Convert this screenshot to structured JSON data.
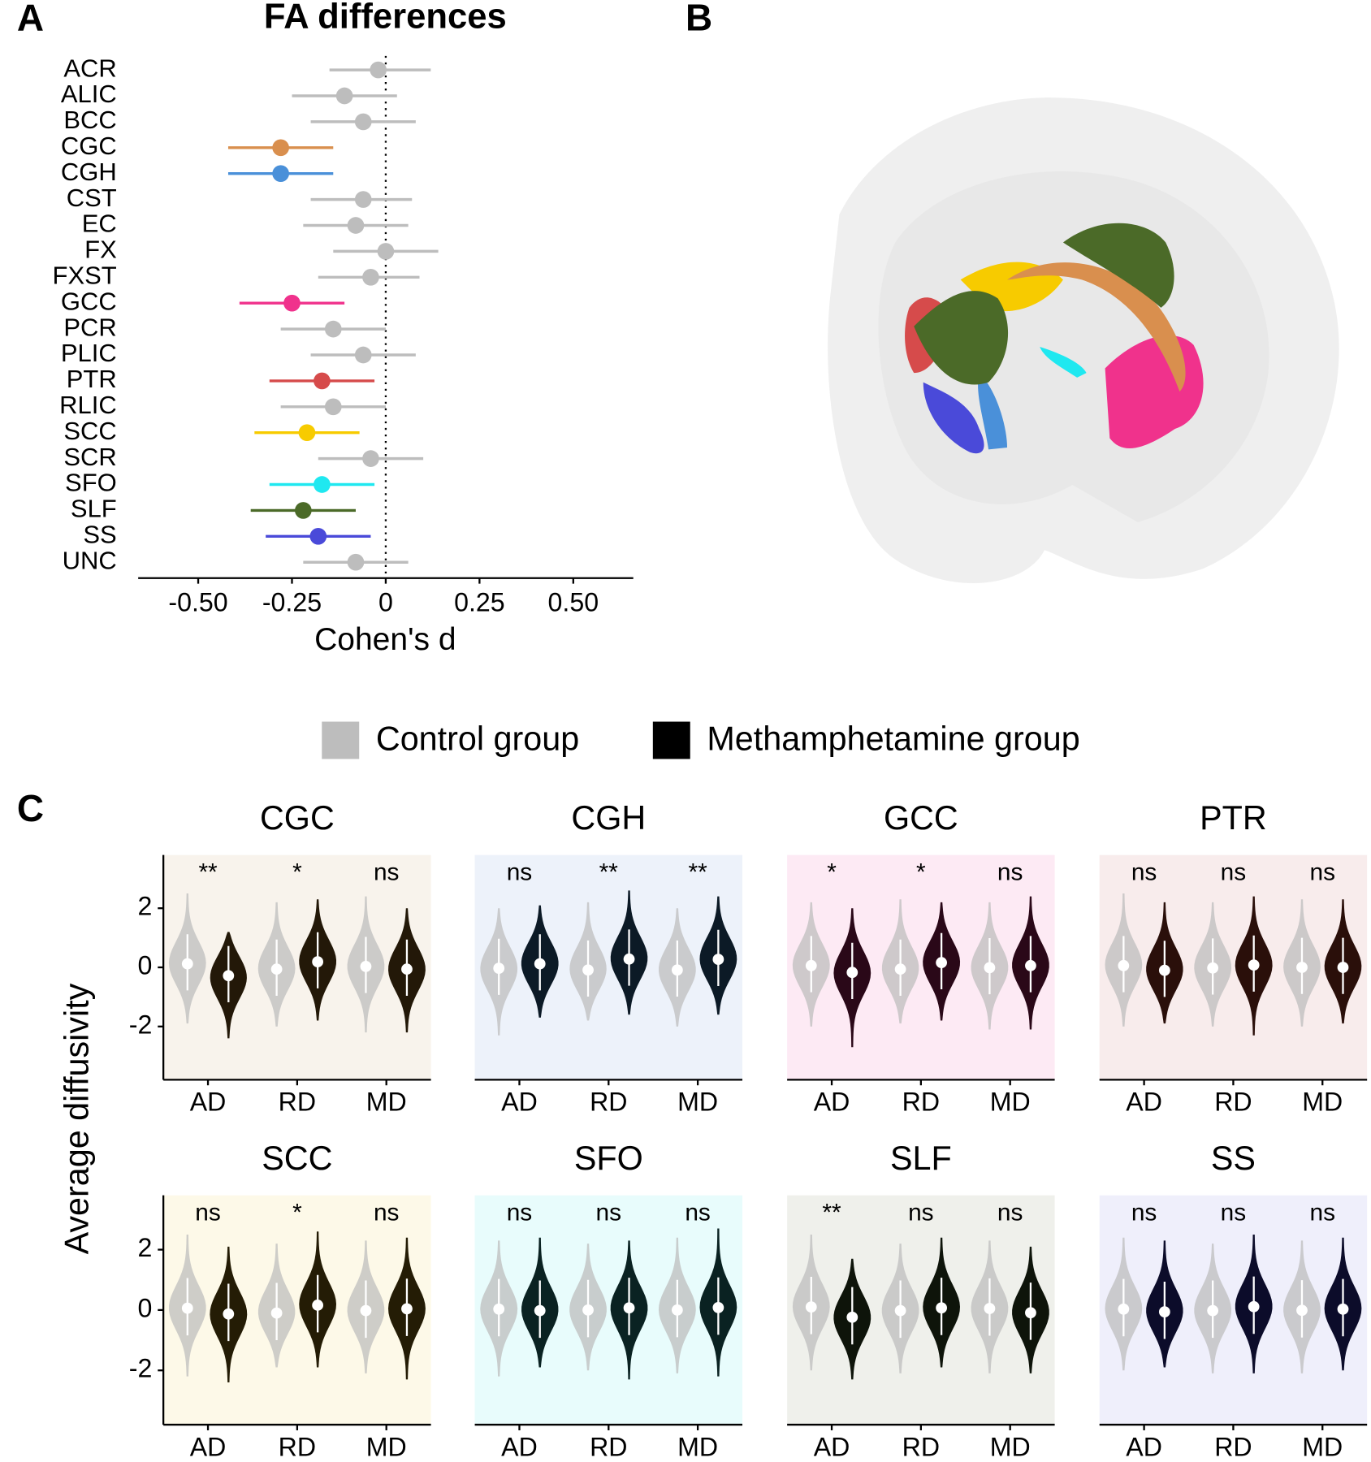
{
  "panel_labels": [
    "A",
    "B",
    "C"
  ],
  "chart_data": [
    {
      "type": "forest",
      "title": "FA differences",
      "x_label": "Cohen's d",
      "categories": [
        "ACR",
        "ALIC",
        "BCC",
        "CGC",
        "CGH",
        "CST",
        "EC",
        "FX",
        "FXST",
        "GCC",
        "PCR",
        "PLIC",
        "PTR",
        "RLIC",
        "SCC",
        "SCR",
        "SFO",
        "SLF",
        "SS",
        "UNC"
      ],
      "values": [
        -0.02,
        -0.11,
        -0.06,
        -0.28,
        -0.28,
        -0.06,
        -0.08,
        0.0,
        -0.04,
        -0.25,
        -0.14,
        -0.06,
        -0.17,
        -0.14,
        -0.21,
        -0.04,
        -0.17,
        -0.22,
        -0.18,
        -0.08
      ],
      "lower": [
        -0.15,
        -0.25,
        -0.2,
        -0.42,
        -0.42,
        -0.2,
        -0.22,
        -0.14,
        -0.18,
        -0.39,
        -0.28,
        -0.2,
        -0.31,
        -0.28,
        -0.35,
        -0.18,
        -0.31,
        -0.36,
        -0.32,
        -0.22
      ],
      "upper": [
        0.12,
        0.03,
        0.08,
        -0.14,
        -0.14,
        0.07,
        0.06,
        0.14,
        0.09,
        -0.11,
        0.0,
        0.08,
        -0.03,
        0.0,
        -0.07,
        0.1,
        -0.03,
        -0.08,
        -0.04,
        0.06
      ],
      "colors": [
        "#bdbdbd",
        "#bdbdbd",
        "#bdbdbd",
        "#d98f4e",
        "#4a90d9",
        "#bdbdbd",
        "#bdbdbd",
        "#bdbdbd",
        "#bdbdbd",
        "#f0328c",
        "#bdbdbd",
        "#bdbdbd",
        "#d64b4b",
        "#bdbdbd",
        "#f7cb00",
        "#bdbdbd",
        "#1fe8f0",
        "#4b6a28",
        "#4a4ad9",
        "#bdbdbd"
      ],
      "xlim": [
        -0.66,
        0.66
      ],
      "xticks": [
        {
          "value": -0.5,
          "label": "-0.50"
        },
        {
          "value": -0.25,
          "label": "-0.25"
        },
        0,
        {
          "value": 0.25,
          "label": "0.25"
        },
        {
          "value": 0.5,
          "label": "0.50"
        }
      ],
      "reference_line": 0
    },
    {
      "type": "violin",
      "y_label": "Average diffusivity",
      "categories": [
        "AD",
        "RD",
        "MD"
      ],
      "ylim": [
        -3.8,
        3.8
      ],
      "yticks": [
        -2,
        0,
        2
      ],
      "series": [
        {
          "name": "Control group",
          "color": "#bdbdbd"
        },
        {
          "name": "Methamphetamine group",
          "color": "#000000"
        }
      ],
      "facets": [
        {
          "title": "CGC",
          "background": "#f8f3ec",
          "color": "#231808",
          "significance": [
            "**",
            "*",
            "ns"
          ],
          "series": [
            {
              "values": [
                0.12,
                -0.06,
                0.03
              ],
              "min": [
                -1.9,
                -2.0,
                -2.2
              ],
              "max": [
                2.5,
                2.2,
                2.4
              ]
            },
            {
              "values": [
                -0.28,
                0.19,
                -0.06
              ],
              "min": [
                -2.4,
                -1.8,
                -2.2
              ],
              "max": [
                1.2,
                2.3,
                2.0
              ]
            }
          ]
        },
        {
          "title": "CGH",
          "background": "#edf2fa",
          "color": "#0c1a26",
          "significance": [
            "ns",
            "**",
            "**"
          ],
          "series": [
            {
              "values": [
                -0.03,
                -0.09,
                -0.09
              ],
              "min": [
                -2.3,
                -1.8,
                -2.0
              ],
              "max": [
                2.0,
                2.2,
                2.0
              ]
            },
            {
              "values": [
                0.12,
                0.28,
                0.27
              ],
              "min": [
                -1.7,
                -1.6,
                -1.6
              ],
              "max": [
                2.1,
                2.6,
                2.4
              ]
            }
          ]
        },
        {
          "title": "GCC",
          "background": "#fdeaf4",
          "color": "#2a0818",
          "significance": [
            "*",
            "*",
            "ns"
          ],
          "series": [
            {
              "values": [
                0.06,
                -0.06,
                -0.01
              ],
              "min": [
                -2.0,
                -1.9,
                -2.1
              ],
              "max": [
                2.2,
                2.3,
                2.2
              ]
            },
            {
              "values": [
                -0.17,
                0.16,
                0.06
              ],
              "min": [
                -2.7,
                -1.8,
                -2.1
              ],
              "max": [
                2.0,
                2.2,
                2.4
              ]
            }
          ]
        },
        {
          "title": "PTR",
          "background": "#f8ecec",
          "color": "#2a0f0a",
          "significance": [
            "ns",
            "ns",
            "ns"
          ],
          "series": [
            {
              "values": [
                0.06,
                -0.02,
                0.0
              ],
              "min": [
                -2.0,
                -2.0,
                -2.0
              ],
              "max": [
                2.5,
                2.2,
                2.3
              ]
            },
            {
              "values": [
                -0.1,
                0.08,
                0.0
              ],
              "min": [
                -1.9,
                -2.3,
                -1.9
              ],
              "max": [
                2.2,
                2.4,
                2.3
              ]
            }
          ]
        },
        {
          "title": "SCC",
          "background": "#fdf9e8",
          "color": "#241c05",
          "significance": [
            "ns",
            "*",
            "ns"
          ],
          "series": [
            {
              "values": [
                0.06,
                -0.1,
                -0.02
              ],
              "min": [
                -2.2,
                -1.9,
                -2.1
              ],
              "max": [
                2.5,
                2.2,
                2.3
              ]
            },
            {
              "values": [
                -0.13,
                0.16,
                0.04
              ],
              "min": [
                -2.4,
                -1.9,
                -2.3
              ],
              "max": [
                2.1,
                2.6,
                2.4
              ]
            }
          ]
        },
        {
          "title": "SFO",
          "background": "#e8fcfc",
          "color": "#0a2222",
          "significance": [
            "ns",
            "ns",
            "ns"
          ],
          "series": [
            {
              "values": [
                0.03,
                0.0,
                0.0
              ],
              "min": [
                -2.2,
                -2.0,
                -2.1
              ],
              "max": [
                2.3,
                2.2,
                2.4
              ]
            },
            {
              "values": [
                -0.02,
                0.07,
                0.08
              ],
              "min": [
                -1.9,
                -2.3,
                -2.2
              ],
              "max": [
                2.4,
                2.3,
                2.7
              ]
            }
          ]
        },
        {
          "title": "SLF",
          "background": "#eff0eb",
          "color": "#0e140a",
          "significance": [
            "**",
            "ns",
            "ns"
          ],
          "series": [
            {
              "values": [
                0.1,
                -0.02,
                0.05
              ],
              "min": [
                -2.0,
                -2.1,
                -2.1
              ],
              "max": [
                2.5,
                2.2,
                2.3
              ]
            },
            {
              "values": [
                -0.24,
                0.07,
                -0.09
              ],
              "min": [
                -2.3,
                -1.9,
                -2.1
              ],
              "max": [
                1.7,
                2.4,
                2.1
              ]
            }
          ]
        },
        {
          "title": "SS",
          "background": "#efeffb",
          "color": "#0c0c2a",
          "significance": [
            "ns",
            "ns",
            "ns"
          ],
          "series": [
            {
              "values": [
                0.03,
                -0.02,
                -0.01
              ],
              "min": [
                -2.0,
                -2.1,
                -2.1
              ],
              "max": [
                2.4,
                2.2,
                2.3
              ]
            },
            {
              "values": [
                -0.06,
                0.11,
                0.03
              ],
              "min": [
                -1.9,
                -2.1,
                -2.0
              ],
              "max": [
                2.3,
                2.5,
                2.4
              ]
            }
          ]
        }
      ]
    }
  ]
}
